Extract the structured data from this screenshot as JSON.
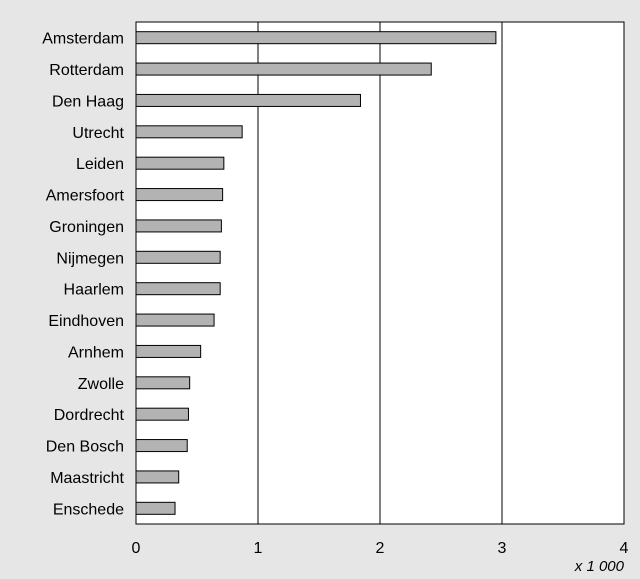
{
  "chart_data": {
    "type": "bar",
    "orientation": "horizontal",
    "categories": [
      "Amsterdam",
      "Rotterdam",
      "Den Haag",
      "Utrecht",
      "Leiden",
      "Amersfoort",
      "Groningen",
      "Nijmegen",
      "Haarlem",
      "Eindhoven",
      "Arnhem",
      "Zwolle",
      "Dordrecht",
      "Den Bosch",
      "Maastricht",
      "Enschede"
    ],
    "values": [
      2.95,
      2.42,
      1.84,
      0.87,
      0.72,
      0.71,
      0.7,
      0.69,
      0.69,
      0.64,
      0.53,
      0.44,
      0.43,
      0.42,
      0.35,
      0.32
    ],
    "xlim": [
      0,
      4
    ],
    "xticks": [
      "0",
      "1",
      "2",
      "3",
      "4"
    ],
    "unit_label": "x 1 000",
    "grid": "vertical lines",
    "colors": {
      "bar": "#b3b3b3",
      "bar_stroke": "#000000",
      "plot_bg": "#ffffff",
      "page_bg": "#e6e6e6"
    }
  }
}
